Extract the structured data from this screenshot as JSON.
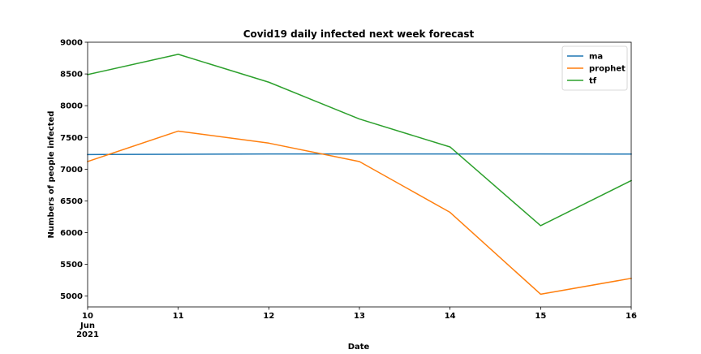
{
  "chart_data": {
    "type": "line",
    "title": "Covid19 daily infected next week forecast",
    "xlabel": "Date",
    "ylabel": "Numbers of people infected",
    "x": [
      10,
      11,
      12,
      13,
      14,
      15,
      16
    ],
    "x_tick_labels": [
      "10",
      "11",
      "12",
      "13",
      "14",
      "15",
      "16"
    ],
    "x_tick_sublabels": [
      "Jun",
      "2021"
    ],
    "xlim": [
      10,
      16
    ],
    "ylim": [
      4830,
      9000
    ],
    "y_ticks": [
      5000,
      5500,
      6000,
      6500,
      7000,
      7500,
      8000,
      8500,
      9000
    ],
    "y_tick_labels": [
      "5000",
      "5500",
      "6000",
      "6500",
      "7000",
      "7500",
      "8000",
      "8500",
      "9000"
    ],
    "grid": false,
    "legend_position": "top-right",
    "series": [
      {
        "name": "ma",
        "color": "#1f77b4",
        "values": [
          7230,
          7235,
          7240,
          7240,
          7240,
          7240,
          7238
        ]
      },
      {
        "name": "prophet",
        "color": "#ff7f0e",
        "values": [
          7120,
          7600,
          7410,
          7120,
          6320,
          5030,
          5280
        ]
      },
      {
        "name": "tf",
        "color": "#2ca02c",
        "values": [
          8490,
          8810,
          8370,
          7790,
          7350,
          6110,
          6820
        ]
      }
    ]
  }
}
